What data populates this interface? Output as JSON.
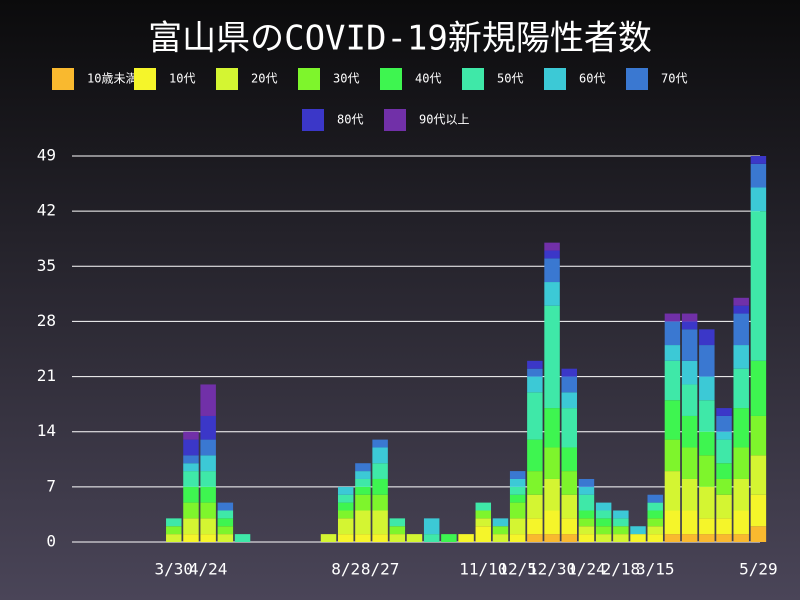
{
  "chart_data": {
    "type": "stacked_bar",
    "title": "富山県のCOVID-19新規陽性者数",
    "categories": [
      null,
      null,
      null,
      null,
      null,
      null,
      "3/30",
      null,
      "4/24",
      null,
      null,
      null,
      null,
      null,
      null,
      null,
      "8/2",
      null,
      "8/27",
      null,
      null,
      null,
      null,
      null,
      "11/10",
      null,
      "12/5",
      null,
      "12/30",
      null,
      "1/24",
      null,
      "2/18",
      null,
      "3/15",
      null,
      null,
      null,
      null,
      null,
      "5/29"
    ],
    "series": [
      {
        "name": "10歳未満",
        "color": "#f9b92f",
        "values": [
          0,
          0,
          0,
          0,
          0,
          0,
          0,
          0,
          0,
          0,
          0,
          0,
          0,
          0,
          0,
          0,
          0,
          0,
          0,
          0,
          0,
          0,
          0,
          0,
          0,
          0,
          0,
          1,
          1,
          1,
          0,
          0,
          0,
          0,
          0,
          1,
          1,
          1,
          1,
          1,
          2
        ]
      },
      {
        "name": "10代",
        "color": "#f5f52a",
        "values": [
          0,
          0,
          0,
          0,
          0,
          0,
          0,
          1,
          1,
          0,
          0,
          0,
          0,
          0,
          0,
          0,
          1,
          1,
          1,
          0,
          0,
          0,
          0,
          1,
          2,
          0,
          1,
          2,
          3,
          2,
          1,
          0,
          0,
          1,
          1,
          3,
          3,
          2,
          2,
          3,
          4
        ]
      },
      {
        "name": "20代",
        "color": "#d4f532",
        "values": [
          0,
          0,
          0,
          0,
          0,
          0,
          1,
          2,
          2,
          1,
          0,
          0,
          0,
          0,
          0,
          1,
          2,
          3,
          3,
          1,
          1,
          0,
          0,
          0,
          1,
          1,
          2,
          3,
          4,
          3,
          1,
          1,
          1,
          0,
          1,
          5,
          4,
          4,
          3,
          4,
          5
        ]
      },
      {
        "name": "30代",
        "color": "#7ef52c",
        "values": [
          0,
          0,
          0,
          0,
          0,
          0,
          1,
          2,
          2,
          1,
          0,
          0,
          0,
          0,
          0,
          0,
          1,
          2,
          2,
          1,
          0,
          0,
          0,
          0,
          1,
          1,
          2,
          3,
          4,
          3,
          1,
          1,
          1,
          0,
          1,
          4,
          4,
          4,
          2,
          4,
          5
        ]
      },
      {
        "name": "40代",
        "color": "#3ef550",
        "values": [
          0,
          0,
          0,
          0,
          0,
          0,
          0,
          2,
          2,
          1,
          0,
          0,
          0,
          0,
          0,
          0,
          1,
          1,
          2,
          0,
          0,
          0,
          1,
          0,
          0,
          0,
          1,
          4,
          5,
          3,
          1,
          1,
          0,
          0,
          1,
          5,
          4,
          3,
          2,
          5,
          7
        ]
      },
      {
        "name": "50代",
        "color": "#3fe8a8",
        "values": [
          0,
          0,
          0,
          0,
          0,
          0,
          1,
          2,
          2,
          1,
          1,
          0,
          0,
          0,
          0,
          0,
          1,
          1,
          2,
          1,
          0,
          1,
          0,
          0,
          1,
          0,
          1,
          6,
          13,
          5,
          2,
          1,
          1,
          0,
          1,
          5,
          4,
          4,
          3,
          5,
          19
        ]
      },
      {
        "name": "60代",
        "color": "#3cc9d6",
        "values": [
          0,
          0,
          0,
          0,
          0,
          0,
          0,
          1,
          2,
          0,
          0,
          0,
          0,
          0,
          0,
          0,
          1,
          1,
          2,
          0,
          0,
          2,
          0,
          0,
          0,
          1,
          1,
          2,
          3,
          2,
          1,
          1,
          1,
          1,
          0,
          2,
          3,
          3,
          1,
          3,
          3
        ]
      },
      {
        "name": "70代",
        "color": "#3a78d1",
        "values": [
          0,
          0,
          0,
          0,
          0,
          0,
          0,
          1,
          2,
          1,
          0,
          0,
          0,
          0,
          0,
          0,
          0,
          1,
          1,
          0,
          0,
          0,
          0,
          0,
          0,
          0,
          1,
          1,
          3,
          2,
          1,
          0,
          0,
          0,
          1,
          3,
          4,
          4,
          2,
          4,
          3
        ]
      },
      {
        "name": "80代",
        "color": "#3b37c8",
        "values": [
          0,
          0,
          0,
          0,
          0,
          0,
          0,
          2,
          3,
          0,
          0,
          0,
          0,
          0,
          0,
          0,
          0,
          0,
          0,
          0,
          0,
          0,
          0,
          0,
          0,
          0,
          0,
          1,
          1,
          1,
          0,
          0,
          0,
          0,
          0,
          0,
          1,
          2,
          1,
          1,
          1
        ]
      },
      {
        "name": "90代以上",
        "color": "#7130a8",
        "values": [
          0,
          0,
          0,
          0,
          0,
          0,
          0,
          1,
          4,
          0,
          0,
          0,
          0,
          0,
          0,
          0,
          0,
          0,
          0,
          0,
          0,
          0,
          0,
          0,
          0,
          0,
          0,
          0,
          1,
          0,
          0,
          0,
          0,
          0,
          0,
          1,
          1,
          0,
          0,
          1,
          0
        ]
      }
    ],
    "ylim": [
      0,
      49
    ],
    "yticks": [
      0,
      7,
      14,
      21,
      28,
      35,
      42,
      49
    ],
    "grid": true
  }
}
